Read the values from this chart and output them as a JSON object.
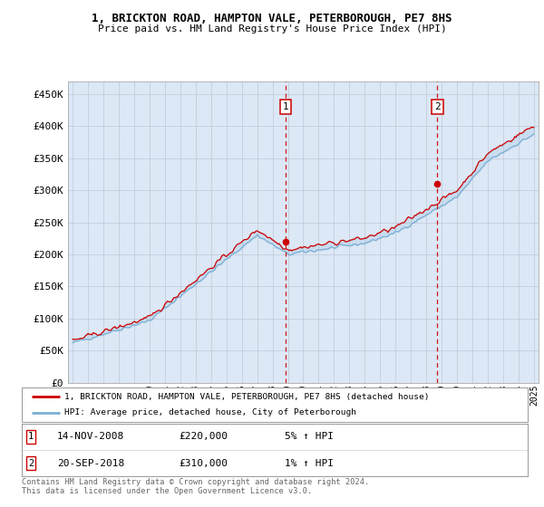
{
  "title": "1, BRICKTON ROAD, HAMPTON VALE, PETERBOROUGH, PE7 8HS",
  "subtitle": "Price paid vs. HM Land Registry's House Price Index (HPI)",
  "ylabel_ticks": [
    "£0",
    "£50K",
    "£100K",
    "£150K",
    "£200K",
    "£250K",
    "£300K",
    "£350K",
    "£400K",
    "£450K"
  ],
  "ytick_vals": [
    0,
    50000,
    100000,
    150000,
    200000,
    250000,
    300000,
    350000,
    400000,
    450000
  ],
  "ylim": [
    0,
    470000
  ],
  "sale1": {
    "date_label": "14-NOV-2008",
    "price": 220000,
    "hpi_pct": "5% ↑ HPI",
    "marker_year": 2008.87
  },
  "sale2": {
    "date_label": "20-SEP-2018",
    "price": 310000,
    "hpi_pct": "1% ↑ HPI",
    "marker_year": 2018.72
  },
  "legend_line1": "1, BRICKTON ROAD, HAMPTON VALE, PETERBOROUGH, PE7 8HS (detached house)",
  "legend_line2": "HPI: Average price, detached house, City of Peterborough",
  "footnote": "Contains HM Land Registry data © Crown copyright and database right 2024.\nThis data is licensed under the Open Government Licence v3.0.",
  "line_color_red": "#cc0000",
  "line_color_blue": "#7bafd4",
  "bg_color": "#dce8f5",
  "grid_color": "#c0c8d8",
  "vline_color": "#cc0000",
  "box_color": "#cc0000",
  "xmin": 1995,
  "xmax": 2025
}
